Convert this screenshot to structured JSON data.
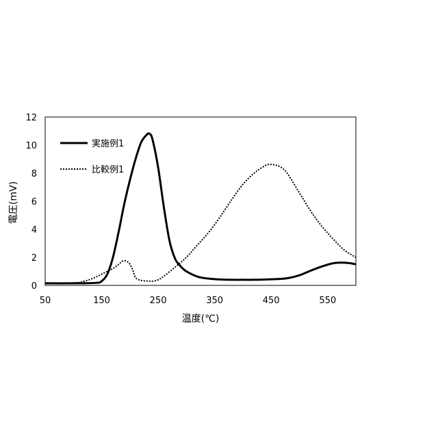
{
  "chart_data": {
    "type": "line",
    "xlabel": "温度(℃)",
    "ylabel": "電圧(mV)",
    "xlim": [
      50,
      600
    ],
    "ylim": [
      0,
      12
    ],
    "xticks": [
      50,
      150,
      250,
      350,
      450,
      550
    ],
    "yticks": [
      0,
      2,
      4,
      6,
      8,
      10,
      12
    ],
    "grid": false,
    "legend_position": "top-left",
    "series": [
      {
        "name": "実施例1",
        "style": "solid",
        "color": "#000000",
        "x": [
          50,
          100,
          140,
          150,
          160,
          170,
          180,
          190,
          200,
          210,
          220,
          230,
          235,
          240,
          250,
          260,
          270,
          280,
          290,
          300,
          320,
          340,
          360,
          380,
          400,
          420,
          440,
          460,
          480,
          500,
          520,
          540,
          560,
          575,
          590,
          600
        ],
        "y": [
          0.15,
          0.15,
          0.18,
          0.3,
          0.8,
          2.0,
          3.8,
          5.8,
          7.5,
          9.0,
          10.2,
          10.75,
          10.8,
          10.4,
          8.4,
          5.6,
          3.2,
          1.9,
          1.35,
          1.0,
          0.62,
          0.48,
          0.42,
          0.4,
          0.4,
          0.4,
          0.42,
          0.45,
          0.52,
          0.72,
          1.05,
          1.35,
          1.58,
          1.62,
          1.58,
          1.5
        ]
      },
      {
        "name": "比較例1",
        "style": "dotted",
        "color": "#000000",
        "x": [
          50,
          100,
          120,
          140,
          160,
          170,
          180,
          188,
          195,
          200,
          205,
          210,
          220,
          230,
          240,
          250,
          260,
          280,
          300,
          320,
          340,
          360,
          380,
          400,
          420,
          440,
          450,
          460,
          470,
          480,
          500,
          520,
          540,
          560,
          580,
          600
        ],
        "y": [
          0.15,
          0.18,
          0.3,
          0.6,
          1.0,
          1.2,
          1.5,
          1.75,
          1.7,
          1.5,
          1.1,
          0.55,
          0.35,
          0.32,
          0.3,
          0.4,
          0.65,
          1.3,
          2.0,
          2.9,
          3.8,
          4.9,
          6.1,
          7.2,
          8.0,
          8.55,
          8.62,
          8.55,
          8.35,
          7.9,
          6.6,
          5.3,
          4.2,
          3.3,
          2.5,
          2.0
        ]
      }
    ]
  }
}
